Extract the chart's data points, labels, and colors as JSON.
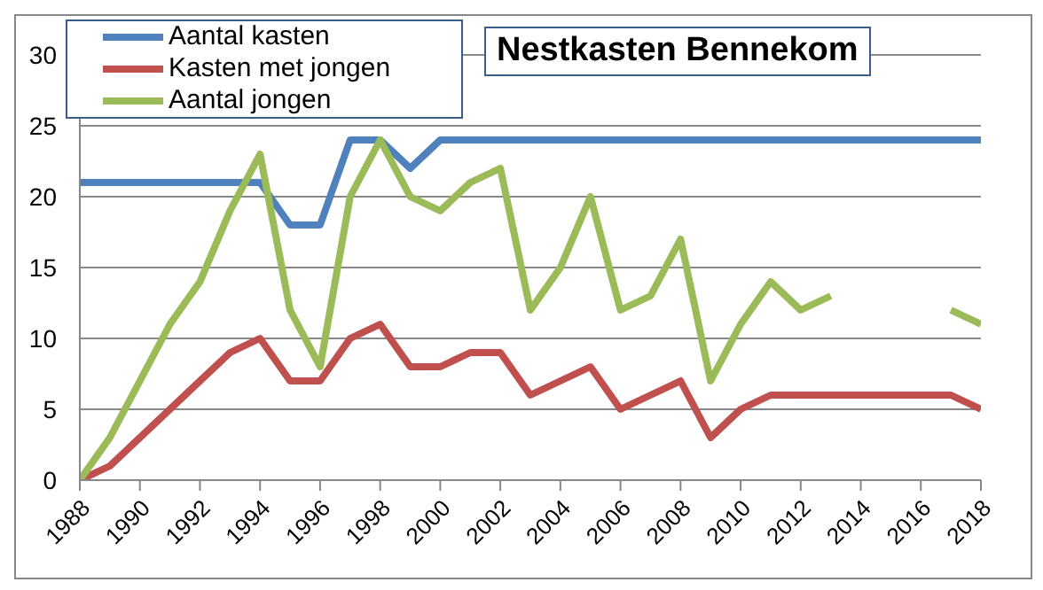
{
  "chart_data": {
    "type": "line",
    "title": "Nestkasten Bennekom",
    "x": [
      1988,
      1989,
      1990,
      1991,
      1992,
      1993,
      1994,
      1995,
      1996,
      1997,
      1998,
      1999,
      2000,
      2001,
      2002,
      2003,
      2004,
      2005,
      2006,
      2007,
      2008,
      2009,
      2010,
      2011,
      2012,
      2013,
      2014,
      2015,
      2016,
      2017,
      2018
    ],
    "series": [
      {
        "name": "Aantal kasten",
        "color": "#4f81bd",
        "values": [
          21,
          21,
          21,
          21,
          21,
          21,
          21,
          18,
          18,
          24,
          24,
          22,
          24,
          24,
          24,
          24,
          24,
          24,
          24,
          24,
          24,
          24,
          24,
          24,
          24,
          24,
          24,
          24,
          24,
          24,
          24
        ]
      },
      {
        "name": "Kasten met jongen",
        "color": "#c0504d",
        "values": [
          0,
          1,
          3,
          5,
          7,
          9,
          10,
          7,
          7,
          10,
          11,
          8,
          8,
          9,
          9,
          6,
          7,
          8,
          5,
          6,
          7,
          3,
          5,
          6,
          6,
          6,
          6,
          6,
          6,
          6,
          5
        ]
      },
      {
        "name": "Aantal jongen",
        "color": "#9bbb59",
        "values": [
          0,
          3,
          7,
          11,
          14,
          19,
          23,
          12,
          8,
          20,
          24,
          20,
          19,
          21,
          22,
          12,
          15,
          20,
          12,
          13,
          17,
          7,
          11,
          14,
          12,
          13,
          null,
          null,
          null,
          12,
          11
        ]
      }
    ],
    "xlim": [
      1988,
      2018
    ],
    "xticks": [
      1988,
      1990,
      1992,
      1994,
      1996,
      1998,
      2000,
      2002,
      2004,
      2006,
      2008,
      2010,
      2012,
      2014,
      2016,
      2018
    ],
    "ylim": [
      0,
      30
    ],
    "yticks": [
      0,
      5,
      10,
      15,
      20,
      25,
      30
    ],
    "grid": "y",
    "legend": "top left",
    "marker": "none",
    "line_style": "solid"
  }
}
